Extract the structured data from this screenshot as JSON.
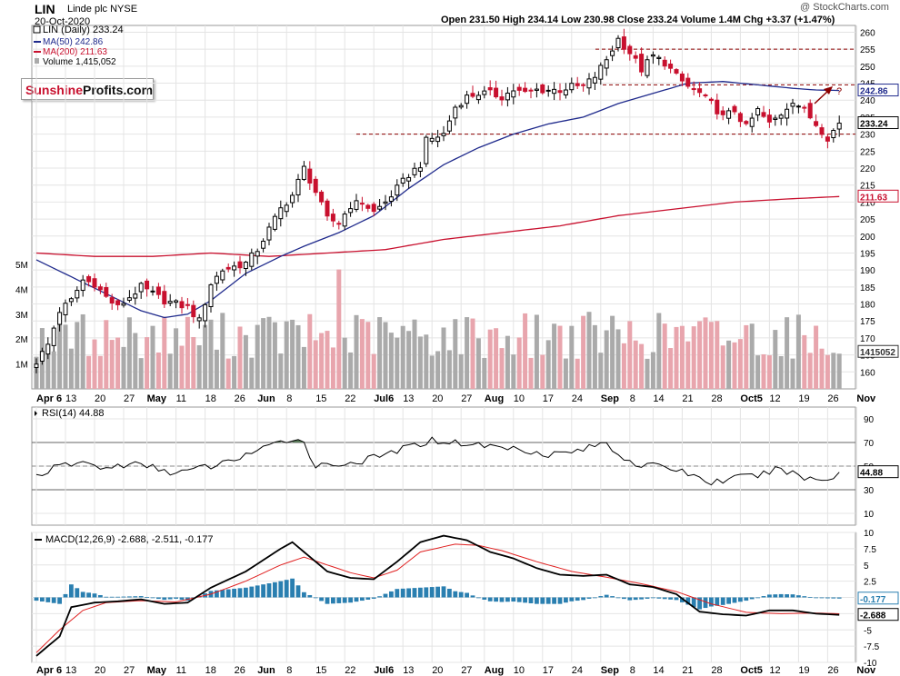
{
  "header": {
    "ticker": "LIN",
    "company": "Linde plc NYSE",
    "date": "20-Oct-2020",
    "quote": "Open 231.50  High 234.14  Low 230.98  Close 233.24  Volume 1.4M  Chg +3.37 (+1.47%)",
    "watermark": "@ StockCharts.com"
  },
  "legend": {
    "price": "LIN (Daily) 233.24",
    "ma50": "MA(50) 242.86",
    "ma200": "MA(200) 211.63",
    "volume": "Volume 1,415,052"
  },
  "logo": {
    "part1": "Sunshine",
    "part2": "Profits.com"
  },
  "colors": {
    "up": "#ffffff",
    "down": "#c8102e",
    "ma50": "#1f2a8c",
    "ma200": "#c8102e",
    "vol_up": "#aaaaaa",
    "vol_down": "#e8a5ad",
    "rsi_fill": "#5a7a5a",
    "macd_hist": "#2a7fb0",
    "grid": "#e4e4e4"
  },
  "annotation": "?",
  "chart_data": [
    {
      "type": "candlestick",
      "name": "price",
      "ylim": [
        155,
        262
      ],
      "yticks": [
        160,
        165,
        170,
        175,
        180,
        185,
        190,
        195,
        200,
        205,
        210,
        215,
        220,
        225,
        230,
        235,
        240,
        245,
        250,
        255,
        260
      ],
      "x_labels": [
        "Apr 6",
        "13",
        "20",
        "27",
        "May",
        "11",
        "18",
        "26",
        "Jun",
        "8",
        "15",
        "22",
        "Jul6",
        "13",
        "20",
        "27",
        "Aug",
        "10",
        "17",
        "24",
        "Sep",
        "8",
        "14",
        "21",
        "28",
        "Oct5",
        "12",
        "19",
        "26",
        "Nov"
      ],
      "x_label_pos": [
        0,
        5,
        10,
        15,
        19,
        24,
        29,
        34,
        38,
        43,
        48,
        53,
        58,
        63,
        68,
        73,
        77,
        82,
        87,
        92,
        97,
        102,
        106,
        111,
        116,
        121,
        126,
        131,
        136,
        141
      ],
      "last_index": 138,
      "anchors": [
        [
          0,
          163
        ],
        [
          2,
          168
        ],
        [
          4,
          178
        ],
        [
          6,
          181
        ],
        [
          8,
          187
        ],
        [
          10,
          186
        ],
        [
          12,
          182
        ],
        [
          14,
          179
        ],
        [
          16,
          182
        ],
        [
          18,
          185
        ],
        [
          20,
          183
        ],
        [
          22,
          181
        ],
        [
          24,
          180
        ],
        [
          26,
          179
        ],
        [
          28,
          175
        ],
        [
          30,
          186
        ],
        [
          32,
          190
        ],
        [
          34,
          191
        ],
        [
          36,
          192
        ],
        [
          38,
          196
        ],
        [
          40,
          202
        ],
        [
          42,
          208
        ],
        [
          44,
          212
        ],
        [
          46,
          220
        ],
        [
          48,
          213
        ],
        [
          50,
          205
        ],
        [
          52,
          204
        ],
        [
          54,
          209
        ],
        [
          56,
          210
        ],
        [
          58,
          207
        ],
        [
          60,
          210
        ],
        [
          62,
          214
        ],
        [
          64,
          218
        ],
        [
          66,
          221
        ],
        [
          67,
          228
        ],
        [
          70,
          230
        ],
        [
          72,
          238
        ],
        [
          74,
          241
        ],
        [
          76,
          242
        ],
        [
          78,
          242
        ],
        [
          80,
          241
        ],
        [
          82,
          243
        ],
        [
          84,
          242
        ],
        [
          86,
          243
        ],
        [
          88,
          243
        ],
        [
          90,
          243
        ],
        [
          92,
          244
        ],
        [
          94,
          244
        ],
        [
          96,
          247
        ],
        [
          98,
          252
        ],
        [
          100,
          258
        ],
        [
          102,
          254
        ],
        [
          104,
          249
        ],
        [
          106,
          253
        ],
        [
          108,
          251
        ],
        [
          110,
          247
        ],
        [
          112,
          244
        ],
        [
          114,
          242
        ],
        [
          116,
          239
        ],
        [
          118,
          235
        ],
        [
          120,
          237
        ],
        [
          122,
          232
        ],
        [
          124,
          237
        ],
        [
          126,
          233
        ],
        [
          128,
          236
        ],
        [
          130,
          240
        ],
        [
          132,
          237
        ],
        [
          134,
          233
        ],
        [
          136,
          229
        ],
        [
          137,
          231
        ],
        [
          138,
          233.24
        ]
      ],
      "ma50": [
        [
          0,
          193
        ],
        [
          6,
          188
        ],
        [
          12,
          183
        ],
        [
          18,
          178
        ],
        [
          22,
          176
        ],
        [
          26,
          177
        ],
        [
          30,
          181
        ],
        [
          36,
          189
        ],
        [
          42,
          194
        ],
        [
          46,
          197
        ],
        [
          52,
          201
        ],
        [
          58,
          206
        ],
        [
          64,
          214
        ],
        [
          70,
          221
        ],
        [
          76,
          226
        ],
        [
          82,
          230
        ],
        [
          88,
          233
        ],
        [
          94,
          235
        ],
        [
          100,
          239
        ],
        [
          106,
          242
        ],
        [
          112,
          245
        ],
        [
          118,
          245.5
        ],
        [
          124,
          244.5
        ],
        [
          130,
          243.5
        ],
        [
          134,
          243
        ],
        [
          138,
          242.86
        ]
      ],
      "ma200": [
        [
          0,
          195
        ],
        [
          10,
          194
        ],
        [
          20,
          194
        ],
        [
          30,
          195
        ],
        [
          40,
          194
        ],
        [
          50,
          195
        ],
        [
          60,
          196
        ],
        [
          70,
          199
        ],
        [
          80,
          201
        ],
        [
          90,
          203
        ],
        [
          100,
          206
        ],
        [
          110,
          208
        ],
        [
          120,
          210
        ],
        [
          130,
          211
        ],
        [
          138,
          211.63
        ]
      ],
      "support_lines": [
        230,
        244.5,
        255
      ],
      "last_value": "233.24",
      "ma50_value": "242.86",
      "ma200_value": "211.63"
    },
    {
      "type": "bar",
      "name": "volume",
      "ylim": [
        0,
        6500000
      ],
      "ytick_labels": [
        "1M",
        "2M",
        "3M",
        "4M",
        "5M"
      ],
      "yticks": [
        1000000,
        2000000,
        3000000,
        4000000,
        5000000
      ],
      "last_value": "1415052"
    },
    {
      "type": "line",
      "name": "RSI(14)",
      "value": "44.88",
      "ylim": [
        0,
        100
      ],
      "yticks": [
        10,
        30,
        50,
        70,
        90
      ],
      "anchors": [
        [
          0,
          42
        ],
        [
          4,
          50
        ],
        [
          8,
          53
        ],
        [
          12,
          48
        ],
        [
          16,
          52
        ],
        [
          20,
          49
        ],
        [
          24,
          44
        ],
        [
          28,
          48
        ],
        [
          32,
          52
        ],
        [
          36,
          60
        ],
        [
          40,
          66
        ],
        [
          42,
          70
        ],
        [
          44,
          74
        ],
        [
          46,
          70
        ],
        [
          48,
          50
        ],
        [
          52,
          52
        ],
        [
          56,
          54
        ],
        [
          60,
          60
        ],
        [
          64,
          66
        ],
        [
          68,
          72
        ],
        [
          72,
          70
        ],
        [
          76,
          68
        ],
        [
          80,
          66
        ],
        [
          84,
          64
        ],
        [
          88,
          60
        ],
        [
          92,
          62
        ],
        [
          96,
          67
        ],
        [
          98,
          70
        ],
        [
          100,
          60
        ],
        [
          104,
          50
        ],
        [
          108,
          50
        ],
        [
          112,
          44
        ],
        [
          116,
          36
        ],
        [
          120,
          40
        ],
        [
          124,
          42
        ],
        [
          128,
          48
        ],
        [
          132,
          40
        ],
        [
          136,
          38
        ],
        [
          138,
          44.88
        ]
      ]
    },
    {
      "type": "line",
      "name": "MACD(12,26,9)",
      "title": "MACD(12,26,9) -2.688, -2.511, -0.177",
      "ylim": [
        -10,
        10
      ],
      "yticks": [
        -10,
        -7.5,
        -5,
        -2.5,
        0,
        2.5,
        5,
        7.5,
        10
      ],
      "macd": [
        [
          0,
          -9
        ],
        [
          4,
          -6
        ],
        [
          6,
          -1.5
        ],
        [
          10,
          -0.8
        ],
        [
          14,
          -0.6
        ],
        [
          18,
          -0.3
        ],
        [
          22,
          -1
        ],
        [
          26,
          -0.8
        ],
        [
          30,
          1.5
        ],
        [
          36,
          4
        ],
        [
          42,
          7.5
        ],
        [
          44,
          8.5
        ],
        [
          46,
          7
        ],
        [
          50,
          4
        ],
        [
          54,
          3
        ],
        [
          58,
          2.8
        ],
        [
          62,
          5.5
        ],
        [
          66,
          8.5
        ],
        [
          70,
          9.5
        ],
        [
          74,
          8.8
        ],
        [
          78,
          7
        ],
        [
          82,
          6
        ],
        [
          86,
          4.5
        ],
        [
          90,
          3.5
        ],
        [
          94,
          3.3
        ],
        [
          98,
          3.5
        ],
        [
          102,
          2
        ],
        [
          106,
          1.6
        ],
        [
          110,
          0.5
        ],
        [
          114,
          -2.2
        ],
        [
          118,
          -2.6
        ],
        [
          122,
          -2.8
        ],
        [
          126,
          -2
        ],
        [
          130,
          -2
        ],
        [
          134,
          -2.5
        ],
        [
          138,
          -2.688
        ]
      ],
      "signal": [
        [
          0,
          -8.5
        ],
        [
          4,
          -5
        ],
        [
          8,
          -2
        ],
        [
          12,
          -0.8
        ],
        [
          18,
          -0.5
        ],
        [
          24,
          -0.7
        ],
        [
          30,
          0.5
        ],
        [
          36,
          2.5
        ],
        [
          42,
          5
        ],
        [
          46,
          6.2
        ],
        [
          50,
          5
        ],
        [
          54,
          3.8
        ],
        [
          58,
          3
        ],
        [
          62,
          4.2
        ],
        [
          66,
          7
        ],
        [
          72,
          8.2
        ],
        [
          76,
          8
        ],
        [
          80,
          7.2
        ],
        [
          86,
          5.5
        ],
        [
          92,
          4
        ],
        [
          98,
          3.1
        ],
        [
          104,
          2.1
        ],
        [
          110,
          0.9
        ],
        [
          116,
          -1
        ],
        [
          122,
          -2.3
        ],
        [
          128,
          -2.5
        ],
        [
          134,
          -2.4
        ],
        [
          138,
          -2.511
        ]
      ],
      "hist_value": "-0.177",
      "macd_value": "-2.688"
    }
  ]
}
